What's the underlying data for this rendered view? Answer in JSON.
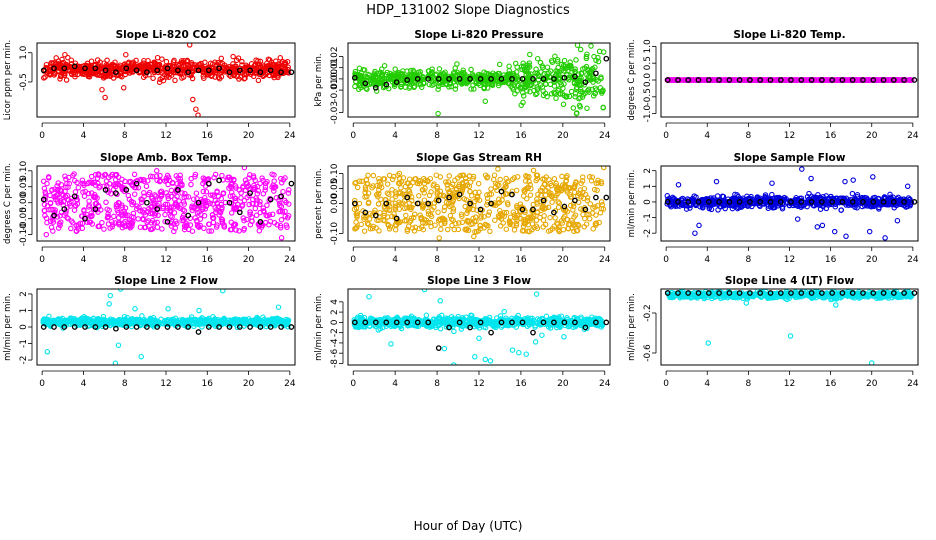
{
  "figure": {
    "title": "HDP_131002  Slope Diagnostics",
    "xlabel": "Hour of Day (UTC)"
  },
  "chart_data": [
    {
      "type": "scatter",
      "title": "Slope Li-820 CO2",
      "ylabel": "Licor ppm per min.",
      "xlim": [
        -0.5,
        24.5
      ],
      "ylim": [
        -2.3,
        1.5
      ],
      "xticks": [
        0,
        4,
        8,
        12,
        16,
        20,
        24
      ],
      "yticks": [
        -0.5,
        1.0
      ],
      "ytick_labels": [
        "-0.5",
        "1.0"
      ],
      "color": "#ee0000",
      "noise": "co2",
      "hourly_x": [
        0,
        1,
        2,
        3,
        4,
        5,
        6,
        7,
        8,
        9,
        10,
        11,
        12,
        13,
        14,
        15,
        16,
        17,
        18,
        19,
        20,
        21,
        22,
        23,
        24
      ],
      "hourly_y": [
        0.1,
        0.2,
        0.2,
        0.3,
        0.2,
        0.2,
        0.1,
        0.0,
        0.2,
        0.1,
        0.0,
        0.1,
        0.2,
        0.1,
        0.0,
        0.1,
        0.1,
        0.2,
        0.0,
        0.1,
        0.1,
        0.0,
        0.1,
        0.0,
        0.0
      ]
    },
    {
      "type": "scatter",
      "title": "Slope Li-820 Pressure",
      "ylabel": "kPa per min.",
      "xlim": [
        -0.5,
        24.5
      ],
      "ylim": [
        -0.034,
        0.032
      ],
      "xticks": [
        0,
        4,
        8,
        12,
        16,
        20,
        24
      ],
      "yticks": [
        -0.03,
        -0.01,
        0.0,
        0.01,
        0.02
      ],
      "ytick_labels": [
        "-0.03",
        "-0.01",
        "0.00",
        "0.01",
        "0.02"
      ],
      "color": "#22cc00",
      "noise": "pressure",
      "hourly_x": [
        0,
        1,
        2,
        3,
        4,
        5,
        6,
        7,
        8,
        9,
        10,
        11,
        12,
        13,
        14,
        15,
        16,
        17,
        18,
        19,
        20,
        21,
        22,
        23,
        24
      ],
      "hourly_y": [
        0.001,
        -0.004,
        -0.008,
        -0.005,
        -0.003,
        -0.001,
        0.0,
        0.0,
        0.0,
        0.0,
        0.0,
        0.0,
        0.0,
        0.0,
        0.0,
        0.0,
        0.0,
        0.0,
        0.0,
        0.0,
        0.001,
        0.002,
        -0.003,
        0.005,
        0.018
      ]
    },
    {
      "type": "scatter",
      "title": "Slope Li-820 Temp.",
      "ylabel": "degrees C per min.",
      "xlim": [
        -0.5,
        24.5
      ],
      "ylim": [
        -1.1,
        1.1
      ],
      "xticks": [
        0,
        4,
        8,
        12,
        16,
        20,
        24
      ],
      "yticks": [
        -1.0,
        -0.5,
        0.0,
        0.5,
        1.0
      ],
      "ytick_labels": [
        "-1.0",
        "-0.5",
        "0.0",
        "0.5",
        "1.0"
      ],
      "color": "#ee00ee",
      "noise": "flat",
      "hourly_x": [
        0,
        1,
        2,
        3,
        4,
        5,
        6,
        7,
        8,
        9,
        10,
        11,
        12,
        13,
        14,
        15,
        16,
        17,
        18,
        19,
        20,
        21,
        22,
        23,
        24
      ],
      "hourly_y": [
        0,
        0,
        0,
        0,
        0,
        0,
        0,
        0,
        0,
        0,
        0,
        0,
        0,
        0,
        0,
        0,
        0,
        0,
        0,
        0,
        0,
        0,
        0,
        0,
        0
      ]
    },
    {
      "type": "scatter",
      "title": "Slope Amb. Box Temp.",
      "ylabel": "degrees C per min.",
      "xlim": [
        -0.5,
        24.5
      ],
      "ylim": [
        -0.12,
        0.115
      ],
      "xticks": [
        0,
        4,
        8,
        12,
        16,
        20,
        24
      ],
      "yticks": [
        -0.1,
        -0.05,
        0.0,
        0.05,
        0.1
      ],
      "ytick_labels": [
        "-0.10",
        "-0.05",
        "0.00",
        "0.05",
        "0.10"
      ],
      "color": "#ff00ff",
      "noise": "boxtemp",
      "hourly_x": [
        0,
        1,
        2,
        3,
        4,
        5,
        6,
        7,
        8,
        9,
        10,
        11,
        12,
        13,
        14,
        15,
        16,
        17,
        18,
        19,
        20,
        21,
        22,
        23,
        24
      ],
      "hourly_y": [
        0.01,
        -0.04,
        -0.02,
        0.02,
        -0.05,
        -0.02,
        0.04,
        0.03,
        0.04,
        0.06,
        0.0,
        -0.02,
        -0.06,
        0.04,
        -0.04,
        0.0,
        0.06,
        0.07,
        0.0,
        -0.03,
        0.03,
        -0.06,
        0.01,
        0.02,
        0.06
      ]
    },
    {
      "type": "scatter",
      "title": "Slope Gas Stream RH",
      "ylabel": "percent per min.",
      "xlim": [
        -0.5,
        24.5
      ],
      "ylim": [
        -0.125,
        0.125
      ],
      "xticks": [
        0,
        4,
        8,
        12,
        16,
        20,
        24
      ],
      "yticks": [
        -0.1,
        0.0,
        0.05,
        0.1
      ],
      "ytick_labels": [
        "-0.10",
        "0.00",
        "0.05",
        "0.10"
      ],
      "color": "#e6a800",
      "noise": "rh",
      "hourly_x": [
        0,
        1,
        2,
        3,
        4,
        5,
        6,
        7,
        8,
        9,
        10,
        11,
        12,
        13,
        14,
        15,
        16,
        17,
        18,
        19,
        20,
        21,
        22,
        23,
        24
      ],
      "hourly_y": [
        0.0,
        -0.03,
        -0.04,
        0.0,
        -0.05,
        0.02,
        0.0,
        0.0,
        0.01,
        0.02,
        0.03,
        0.0,
        -0.02,
        0.0,
        0.04,
        0.03,
        -0.02,
        -0.02,
        0.01,
        -0.03,
        -0.01,
        0.01,
        -0.02,
        0.02,
        0.02
      ]
    },
    {
      "type": "scatter",
      "title": "Slope Sample Flow",
      "ylabel": "ml/min per min.",
      "xlim": [
        -0.5,
        24.5
      ],
      "ylim": [
        -2.5,
        2.3
      ],
      "xticks": [
        0,
        4,
        8,
        12,
        16,
        20,
        24
      ],
      "yticks": [
        -2,
        -1,
        0,
        1,
        2
      ],
      "ytick_labels": [
        "-2",
        "-1",
        "0",
        "1",
        "2"
      ],
      "color": "#0000dd",
      "noise": "flow",
      "hourly_x": [
        0,
        1,
        2,
        3,
        4,
        5,
        6,
        7,
        8,
        9,
        10,
        11,
        12,
        13,
        14,
        15,
        16,
        17,
        18,
        19,
        20,
        21,
        22,
        23,
        24
      ],
      "hourly_y": [
        0,
        0,
        0,
        0,
        0,
        0,
        0,
        0,
        0,
        0,
        0,
        0,
        0,
        0,
        0,
        0,
        0,
        0,
        0,
        0,
        0,
        0,
        0,
        0,
        0
      ]
    },
    {
      "type": "scatter",
      "title": "Slope Line 2 Flow",
      "ylabel": "ml/min per min.",
      "xlim": [
        -0.5,
        24.5
      ],
      "ylim": [
        -2.3,
        2.3
      ],
      "xticks": [
        0,
        4,
        8,
        12,
        16,
        20,
        24
      ],
      "yticks": [
        -2,
        -1,
        0,
        1,
        2
      ],
      "ytick_labels": [
        "-2",
        "-1",
        "0",
        "1",
        "2"
      ],
      "color": "#00e5ee",
      "noise": "line2",
      "hourly_x": [
        0,
        1,
        2,
        3,
        4,
        5,
        6,
        7,
        8,
        9,
        10,
        11,
        12,
        13,
        14,
        15,
        16,
        17,
        18,
        19,
        20,
        21,
        22,
        23,
        24
      ],
      "hourly_y": [
        0,
        0,
        0,
        0,
        0,
        0,
        0,
        -0.1,
        0,
        0,
        0,
        0,
        0,
        0,
        0,
        -0.3,
        0,
        0,
        0,
        0,
        0,
        0,
        0,
        0,
        0
      ]
    },
    {
      "type": "scatter",
      "title": "Slope Line 3 Flow",
      "ylabel": "ml/min per min.",
      "xlim": [
        -0.5,
        24.5
      ],
      "ylim": [
        -8.3,
        6.5
      ],
      "xticks": [
        0,
        4,
        8,
        12,
        16,
        20,
        24
      ],
      "yticks": [
        -8,
        -6,
        -4,
        -2,
        0,
        2,
        4
      ],
      "ytick_labels": [
        "-8",
        "-6",
        "-4",
        "-2",
        "0",
        "2",
        "4"
      ],
      "color": "#00e5ee",
      "noise": "line3",
      "hourly_x": [
        0,
        1,
        2,
        3,
        4,
        5,
        6,
        7,
        8,
        9,
        10,
        11,
        12,
        13,
        14,
        15,
        16,
        17,
        18,
        19,
        20,
        21,
        22,
        23,
        24
      ],
      "hourly_y": [
        0,
        0,
        0,
        0,
        0,
        0,
        0,
        0,
        -5,
        -1,
        0,
        -1,
        0,
        -2,
        0,
        0,
        0,
        -2,
        0,
        0,
        0,
        0,
        -1,
        0,
        0
      ]
    },
    {
      "type": "scatter",
      "title": "Slope Line 4 (LT) Flow",
      "ylabel": "ml/min per min.",
      "xlim": [
        -0.5,
        24.5
      ],
      "ylim": [
        -0.72,
        0.04
      ],
      "xticks": [
        0,
        4,
        8,
        12,
        16,
        20,
        24
      ],
      "yticks": [
        -0.6,
        -0.2
      ],
      "ytick_labels": [
        "-0.6",
        "-0.2"
      ],
      "color": "#00e5ee",
      "noise": "line4",
      "hourly_x": [
        0,
        1,
        2,
        3,
        4,
        5,
        6,
        7,
        8,
        9,
        10,
        11,
        12,
        13,
        14,
        15,
        16,
        17,
        18,
        19,
        20,
        21,
        22,
        23,
        24
      ],
      "hourly_y": [
        0,
        0,
        0,
        0,
        0,
        0,
        0,
        0,
        0,
        0,
        0,
        0,
        0,
        0,
        0,
        0,
        0,
        0,
        0,
        0,
        0,
        0,
        0,
        0,
        0
      ]
    }
  ]
}
